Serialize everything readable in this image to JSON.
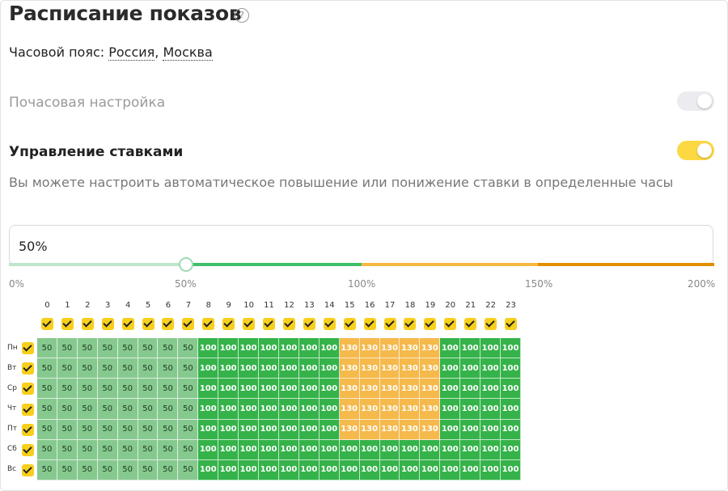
{
  "header": {
    "title": "Расписание показов",
    "help_icon": "?"
  },
  "timezone": {
    "label": "Часовой пояс:",
    "country": "Россия",
    "separator": ",",
    "city": "Москва"
  },
  "hourly_setting": {
    "label": "Почасовая настройка",
    "enabled": false
  },
  "bid_management": {
    "label": "Управление ставками",
    "enabled": true,
    "description": "Вы можете настроить автоматическое повышение или понижение ставки в определенные часы"
  },
  "bid_input": {
    "value": "50%"
  },
  "slider": {
    "value_percent": 50,
    "scale_labels": [
      "0%",
      "50%",
      "100%",
      "150%",
      "200%"
    ],
    "colors": {
      "low": "#bfe6cc",
      "normal": "#3fbf6a",
      "high": "#f5b942",
      "max": "#e28e00"
    }
  },
  "schedule": {
    "hours": [
      "0",
      "1",
      "2",
      "3",
      "4",
      "5",
      "6",
      "7",
      "8",
      "9",
      "10",
      "11",
      "12",
      "13",
      "14",
      "15",
      "16",
      "17",
      "18",
      "19",
      "20",
      "21",
      "22",
      "23"
    ],
    "days": [
      "Пн",
      "Вт",
      "Ср",
      "Чт",
      "Пт",
      "Сб",
      "Вс"
    ],
    "rows": [
      [
        "50",
        "50",
        "50",
        "50",
        "50",
        "50",
        "50",
        "50",
        "100",
        "100",
        "100",
        "100",
        "100",
        "100",
        "100",
        "130",
        "130",
        "130",
        "130",
        "130",
        "100",
        "100",
        "100",
        "100"
      ],
      [
        "50",
        "50",
        "50",
        "50",
        "50",
        "50",
        "50",
        "50",
        "100",
        "100",
        "100",
        "100",
        "100",
        "100",
        "100",
        "130",
        "130",
        "130",
        "130",
        "130",
        "100",
        "100",
        "100",
        "100"
      ],
      [
        "50",
        "50",
        "50",
        "50",
        "50",
        "50",
        "50",
        "50",
        "100",
        "100",
        "100",
        "100",
        "100",
        "100",
        "100",
        "130",
        "130",
        "130",
        "130",
        "130",
        "100",
        "100",
        "100",
        "100"
      ],
      [
        "50",
        "50",
        "50",
        "50",
        "50",
        "50",
        "50",
        "50",
        "100",
        "100",
        "100",
        "100",
        "100",
        "100",
        "100",
        "130",
        "130",
        "130",
        "130",
        "130",
        "100",
        "100",
        "100",
        "100"
      ],
      [
        "50",
        "50",
        "50",
        "50",
        "50",
        "50",
        "50",
        "50",
        "100",
        "100",
        "100",
        "100",
        "100",
        "100",
        "100",
        "130",
        "130",
        "130",
        "130",
        "130",
        "100",
        "100",
        "100",
        "100"
      ],
      [
        "50",
        "50",
        "50",
        "50",
        "50",
        "50",
        "50",
        "50",
        "100",
        "100",
        "100",
        "100",
        "100",
        "100",
        "100",
        "100",
        "100",
        "100",
        "100",
        "100",
        "100",
        "100",
        "100",
        "100"
      ],
      [
        "50",
        "50",
        "50",
        "50",
        "50",
        "50",
        "50",
        "50",
        "100",
        "100",
        "100",
        "100",
        "100",
        "100",
        "100",
        "100",
        "100",
        "100",
        "100",
        "100",
        "100",
        "100",
        "100",
        "100"
      ]
    ],
    "colors": {
      "50": "#86c98f",
      "100": "#35b34a",
      "130": "#f5b94c",
      "checkbox": "#f7cf1c"
    }
  }
}
